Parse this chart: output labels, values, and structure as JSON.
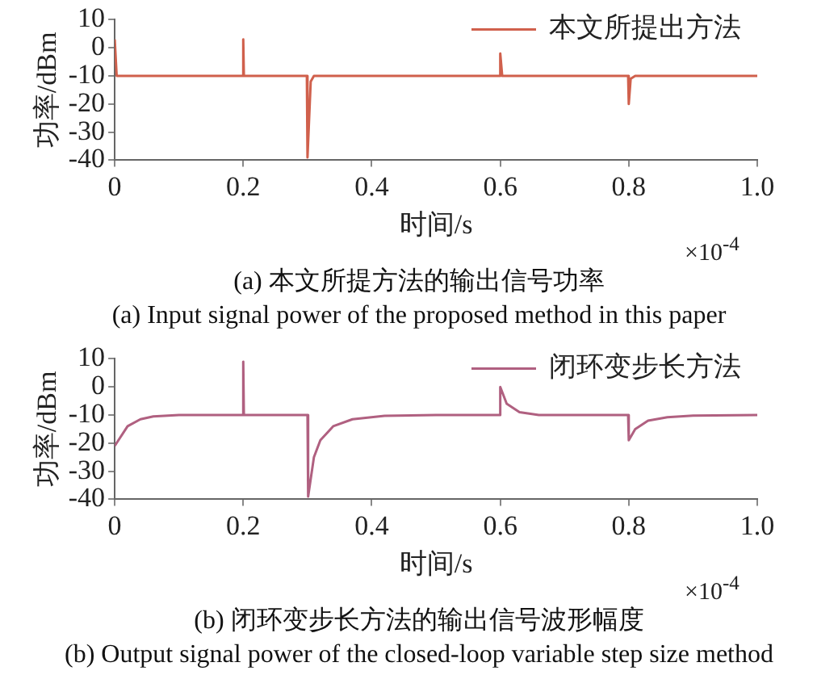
{
  "chart_data": [
    {
      "type": "line",
      "xlabel": "时间/s",
      "ylabel": "功率/dBm",
      "xlim": [
        0,
        1.0
      ],
      "xticks": [
        0,
        0.2,
        0.4,
        0.6,
        0.8,
        {
          "value": 1.0,
          "label": "1.0"
        }
      ],
      "ylim": [
        -40,
        10
      ],
      "yticks": [
        -40,
        -30,
        -20,
        -10,
        0,
        10
      ],
      "grid": false,
      "legend": "top right",
      "marker": "none",
      "line_style": "solid",
      "annotations": [
        "×10$^{-4}$",
        "(a) 本文所提方法的输出信号功率",
        "(a) Input signal power of the proposed method in this paper"
      ],
      "series": [
        {
          "name": "本文所提出方法",
          "color": "#d0604c",
          "x": [
            0,
            0.003,
            0.1,
            0.199,
            0.2,
            0.201,
            0.299,
            0.3,
            0.305,
            0.31,
            0.5,
            0.599,
            0.6,
            0.603,
            0.799,
            0.8,
            0.803,
            0.81,
            1.0
          ],
          "values": [
            3,
            -10,
            -10,
            -10,
            3,
            -10,
            -10,
            -39,
            -12,
            -10,
            -10,
            -10,
            -2,
            -10,
            -10,
            -20,
            -11,
            -10,
            -10
          ]
        }
      ]
    },
    {
      "type": "line",
      "xlabel": "时间/s",
      "ylabel": "功率/dBm",
      "xlim": [
        0,
        1.0
      ],
      "xticks": [
        0,
        0.2,
        0.4,
        0.6,
        0.8,
        {
          "value": 1.0,
          "label": "1.0"
        }
      ],
      "ylim": [
        -40,
        10
      ],
      "yticks": [
        -40,
        -30,
        -20,
        -10,
        0,
        10
      ],
      "grid": false,
      "legend": "top right",
      "marker": "none",
      "line_style": "solid",
      "annotations": [
        "×10$^{-4}$",
        "(b) 闭环变步长方法的输出信号波形幅度",
        "(b) Output signal power of the closed-loop variable step size method"
      ],
      "series": [
        {
          "name": "闭环变步长方法",
          "color": "#b06080",
          "x": [
            0,
            0.02,
            0.04,
            0.06,
            0.1,
            0.199,
            0.2,
            0.201,
            0.3,
            0.301,
            0.31,
            0.32,
            0.34,
            0.37,
            0.42,
            0.5,
            0.599,
            0.6,
            0.61,
            0.63,
            0.66,
            0.799,
            0.8,
            0.81,
            0.83,
            0.86,
            0.9,
            1.0
          ],
          "values": [
            -21,
            -14,
            -11.5,
            -10.5,
            -10,
            -10,
            9,
            -10,
            -10,
            -39,
            -25,
            -19,
            -14,
            -11.5,
            -10.3,
            -10,
            -10,
            0,
            -6,
            -9,
            -10,
            -10,
            -19,
            -15,
            -12,
            -10.8,
            -10.2,
            -10
          ]
        }
      ]
    }
  ]
}
